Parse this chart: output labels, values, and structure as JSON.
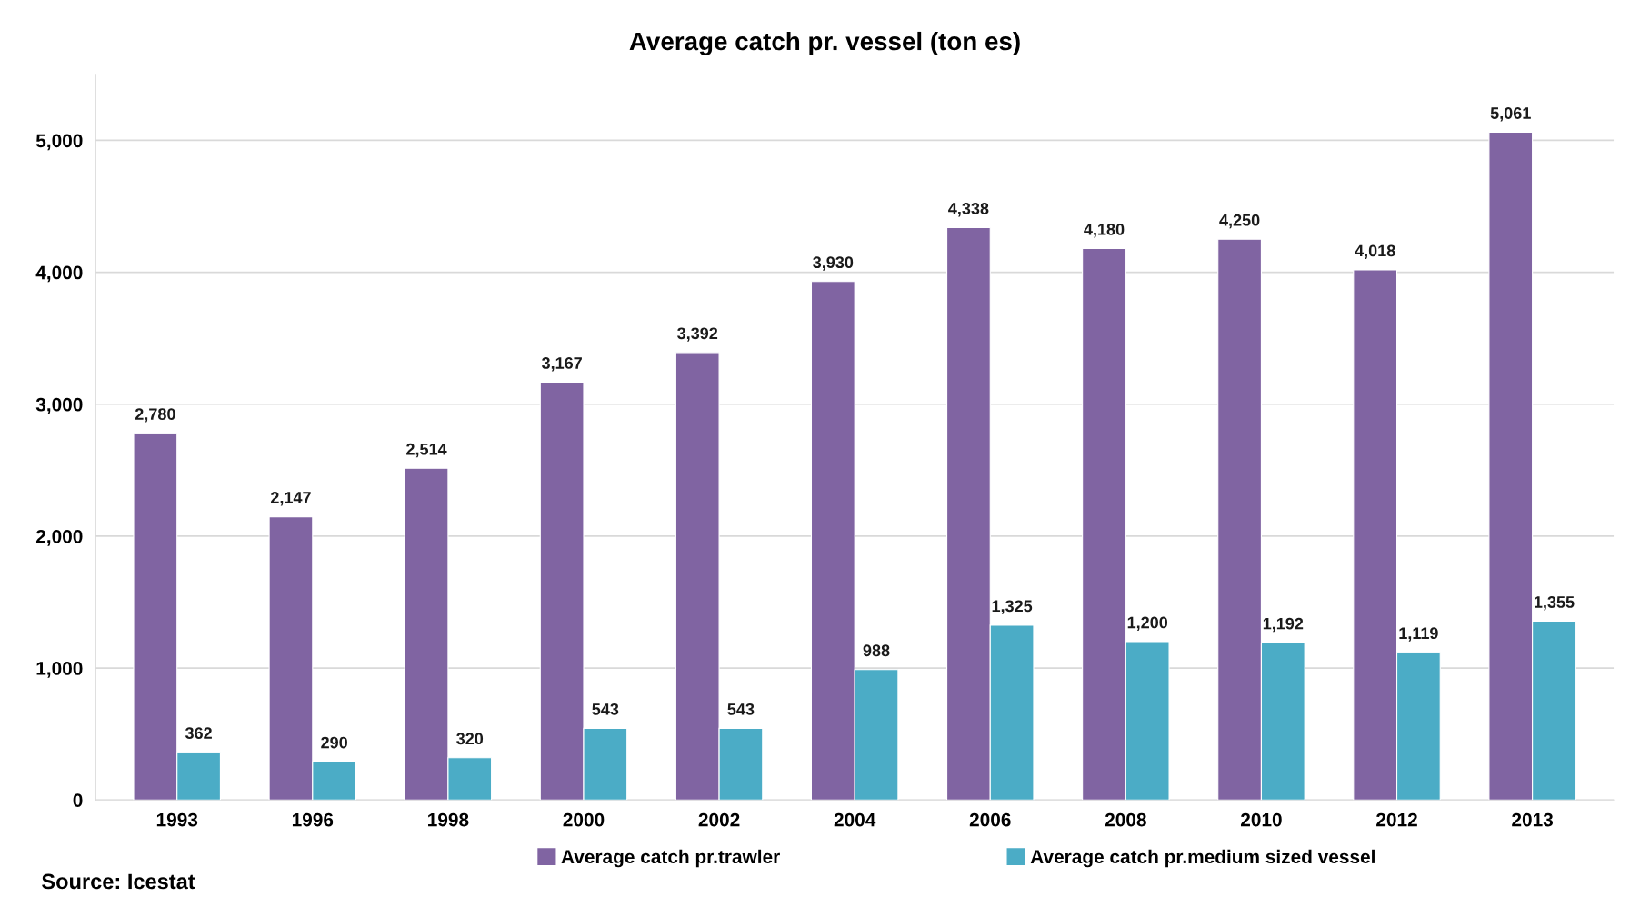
{
  "chart_data": {
    "type": "bar",
    "title": "Average catch pr. vessel (ton es)",
    "categories": [
      "1993",
      "1996",
      "1998",
      "2000",
      "2002",
      "2004",
      "2006",
      "2008",
      "2010",
      "2012",
      "2013"
    ],
    "series": [
      {
        "name": "Average catch pr.trawler",
        "color": "#8064a2",
        "values": [
          2780,
          2147,
          2514,
          3167,
          3392,
          3930,
          4338,
          4180,
          4250,
          4018,
          5061
        ],
        "value_labels": [
          "2,780",
          "2,147",
          "2,514",
          "3,167",
          "3,392",
          "3,930",
          "4,338",
          "4,180",
          "4,250",
          "4,018",
          "5,061"
        ]
      },
      {
        "name": "Average catch pr.medium sized vessel",
        "color": "#4bacc6",
        "values": [
          362,
          290,
          320,
          543,
          543,
          988,
          1325,
          1200,
          1192,
          1119,
          1355
        ],
        "value_labels": [
          "362",
          "290",
          "320",
          "543",
          "543",
          "988",
          "1,325",
          "1,200",
          "1,192",
          "1,119",
          "1,355"
        ]
      }
    ],
    "ylim": [
      0,
      5500
    ],
    "yticks": [
      0,
      {
        "value": 1000,
        "label": "1,000"
      },
      {
        "value": 2000,
        "label": "2,000"
      },
      {
        "value": 3000,
        "label": "3,000"
      },
      {
        "value": 4000,
        "label": "4,000"
      },
      {
        "value": 5000,
        "label": "5,000"
      }
    ],
    "grid": "y",
    "legend": "bottom",
    "annotations": [
      "Source: Icestat"
    ]
  }
}
